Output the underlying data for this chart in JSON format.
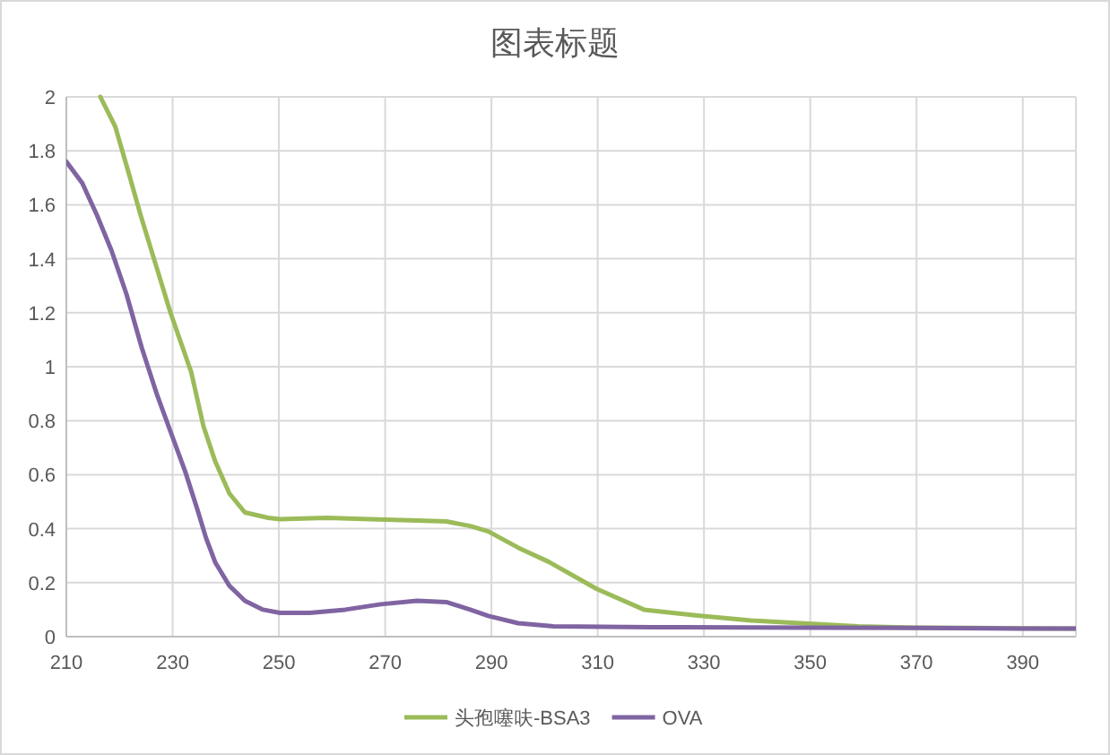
{
  "chart_data": {
    "type": "line",
    "title": "图表标题",
    "xlim": [
      210,
      400
    ],
    "xticks": [
      210,
      230,
      250,
      270,
      290,
      310,
      330,
      350,
      370,
      390
    ],
    "ylim": [
      0,
      2
    ],
    "yticks": [
      0,
      0.2,
      0.4,
      0.6,
      0.8,
      1,
      1.2,
      1.4,
      1.6,
      1.8,
      2
    ],
    "grid": true,
    "legend": "bottom",
    "marker": "none",
    "line_style": "solid",
    "series": [
      {
        "name": "头孢噻呋-BSA3",
        "color": "#9bbb59",
        "x": [
          216.4,
          219.2,
          221.7,
          224,
          226.8,
          229.6,
          233.5,
          235.8,
          238,
          240.7,
          243.6,
          248,
          250.2,
          259,
          267,
          276,
          281.5,
          286,
          289.4,
          295,
          300.8,
          309.8,
          318.7,
          328.8,
          338.9,
          348.9,
          359,
          370,
          380,
          390,
          400
        ],
        "values": [
          2.0,
          1.89,
          1.72,
          1.56,
          1.38,
          1.2,
          0.98,
          0.78,
          0.65,
          0.53,
          0.46,
          0.44,
          0.435,
          0.44,
          0.435,
          0.43,
          0.427,
          0.41,
          0.39,
          0.33,
          0.277,
          0.177,
          0.1,
          0.078,
          0.06,
          0.049,
          0.038,
          0.033,
          0.032,
          0.031,
          0.03
        ]
      },
      {
        "name": "OVA",
        "color": "#8064a2",
        "x": [
          210,
          213,
          215.8,
          218.5,
          221.3,
          224.2,
          227,
          229.6,
          232.4,
          234.6,
          236.3,
          238,
          240.7,
          243.6,
          247,
          250.2,
          255.8,
          262.5,
          269.2,
          276,
          281.5,
          286,
          289.4,
          295,
          301.7,
          320,
          350,
          370,
          390,
          400
        ],
        "values": [
          1.76,
          1.68,
          1.56,
          1.43,
          1.27,
          1.07,
          0.9,
          0.76,
          0.61,
          0.475,
          0.365,
          0.276,
          0.188,
          0.133,
          0.1,
          0.088,
          0.088,
          0.1,
          0.12,
          0.133,
          0.128,
          0.1,
          0.077,
          0.05,
          0.038,
          0.035,
          0.033,
          0.032,
          0.03,
          0.03
        ]
      }
    ]
  }
}
